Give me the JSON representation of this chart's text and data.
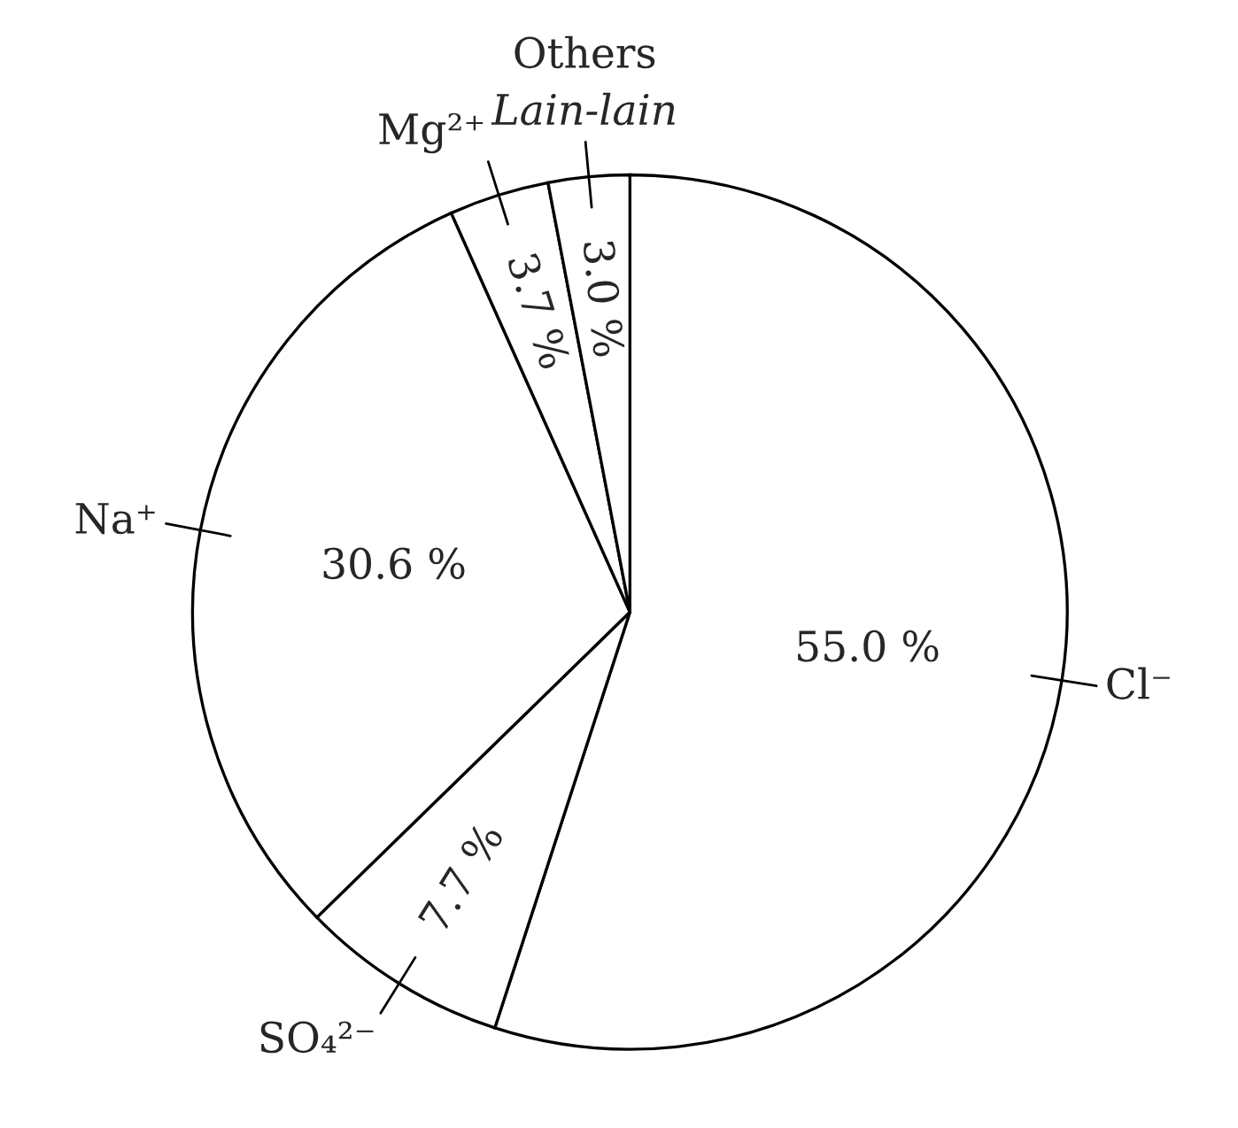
{
  "chart_data": {
    "type": "pie",
    "categories": [
      "Cl⁻",
      "SO₄²⁻",
      "Na⁺",
      "Mg²⁺",
      "Others\nLain-lain"
    ],
    "values": [
      55.0,
      7.7,
      30.6,
      3.7,
      3.0
    ],
    "value_labels": [
      "55.0 %",
      "7.7 %",
      "30.6 %",
      "3.7 %",
      "3.0 %"
    ],
    "colors": [
      "#ffffff",
      "#ffffff",
      "#ffffff",
      "#ffffff",
      "#ffffff"
    ],
    "legend": false
  }
}
